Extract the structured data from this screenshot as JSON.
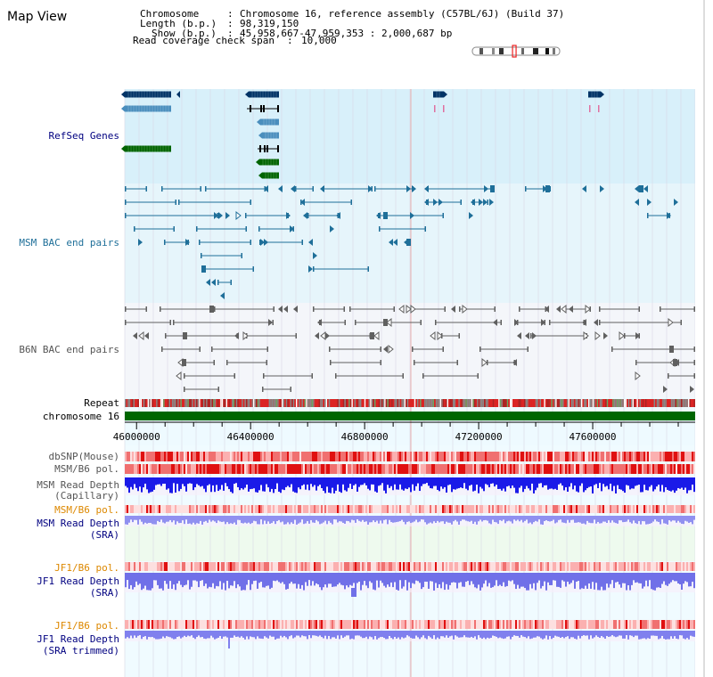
{
  "window": {
    "title": "Map View"
  },
  "header": {
    "lines": [
      {
        "key": "Chromosome",
        "value": "Chromosome 16, reference assembly (C57BL/6J) (Build 37)"
      },
      {
        "key": "Length (b.p.)",
        "value": "98,319,150"
      },
      {
        "key": "Show (b.p.)",
        "value": "45,958,667-47,959,353 : 2,000,687 bp"
      },
      {
        "key": "Read coverage check span",
        "value": "10,000"
      }
    ]
  },
  "ideogram": {
    "highlight_fraction": 0.47
  },
  "tracks": {
    "refseq": {
      "label": "RefSeq Genes"
    },
    "msm_bac": {
      "label": "MSM BAC end pairs"
    },
    "b6n_bac": {
      "label": "B6N BAC end pairs"
    },
    "repeat": {
      "label": "Repeat"
    },
    "chromosome": {
      "label": "chromosome 16"
    },
    "dbsnp": {
      "label": "dbSNP(Mouse)"
    },
    "msm_pol": {
      "label": "MSM/B6 pol."
    },
    "msm_depth_cap": {
      "label_lines": [
        "MSM Read Depth",
        "(Capillary)"
      ]
    },
    "msm_pol_sra": {
      "label": "MSM/B6 pol."
    },
    "msm_depth_sra": {
      "label_lines": [
        "MSM Read Depth",
        "(SRA)"
      ]
    },
    "jf1_pol": {
      "label": "JF1/B6 pol."
    },
    "jf1_depth_sra": {
      "label_lines": [
        "JF1 Read Depth",
        "(SRA)"
      ]
    },
    "jf1_pol_trim": {
      "label": "JF1/B6 pol."
    },
    "jf1_depth_trim": {
      "label_lines": [
        "JF1 Read Depth",
        "(SRA trimmed)"
      ]
    }
  },
  "ruler": {
    "ticks": [
      {
        "pos": 46000000,
        "label": "46000000"
      },
      {
        "pos": 46400000,
        "label": "46400000"
      },
      {
        "pos": 46800000,
        "label": "46800000"
      },
      {
        "pos": 47200000,
        "label": "47200000"
      },
      {
        "pos": 47600000,
        "label": "47600000"
      }
    ]
  },
  "colors": {
    "refseq_bg": "#d8f0fa",
    "msm_bg": "#e8f6fb",
    "b6n_bg": "#f3f6fb",
    "track_bg": "#eafaff",
    "dark_blue": "#003366",
    "mid_blue": "#4a8ebd",
    "green": "#006400",
    "bac_blue": "#1f6f99",
    "bac_grey": "#606060",
    "chrom_green": "#006600",
    "pol_red": "#f04040",
    "depth_blue": "#2020ee",
    "depth_light": "#8080ee",
    "label_blue": "#000080",
    "label_orange": "#dd8800",
    "label_grey": "#555555"
  }
}
